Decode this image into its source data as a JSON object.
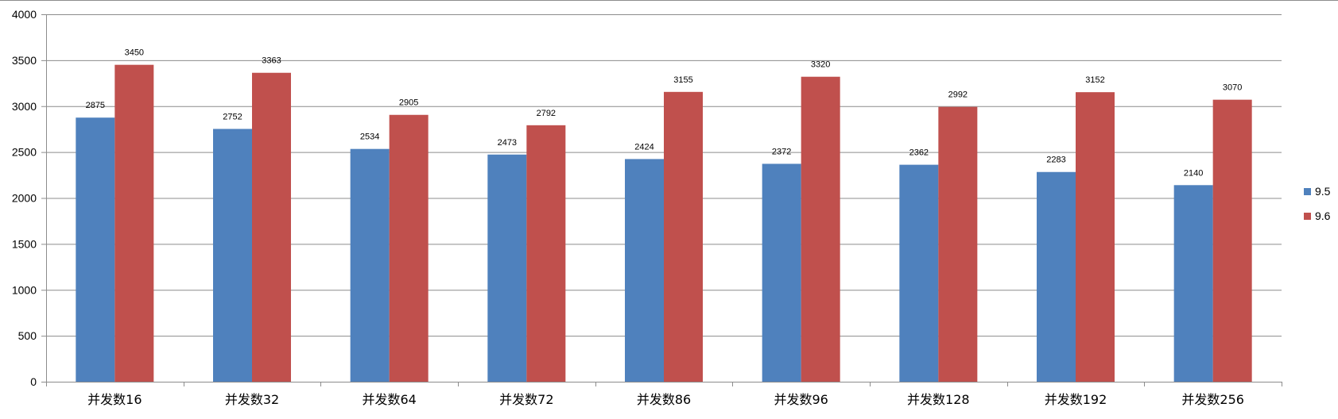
{
  "chart_data": {
    "type": "bar",
    "categories": [
      "并发数16",
      "并发数32",
      "并发数64",
      "并发数72",
      "并发数86",
      "并发数96",
      "并发数128",
      "并发数192",
      "并发数256"
    ],
    "series": [
      {
        "name": "9.5",
        "color": "#4f81bd",
        "values": [
          2875,
          2752,
          2534,
          2473,
          2424,
          2372,
          2362,
          2283,
          2140
        ]
      },
      {
        "name": "9.6",
        "color": "#c0504d",
        "values": [
          3450,
          3363,
          2905,
          2792,
          3155,
          3320,
          2992,
          3152,
          3070
        ]
      }
    ],
    "ylim": [
      0,
      4000
    ],
    "yticks": [
      0,
      500,
      1000,
      1500,
      2000,
      2500,
      3000,
      3500,
      4000
    ],
    "grid": true,
    "legend": "right",
    "data_labels": true
  }
}
